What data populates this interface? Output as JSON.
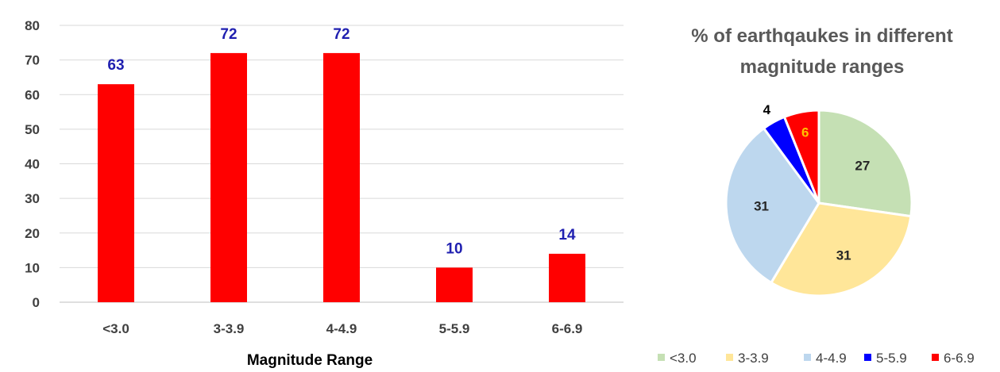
{
  "chart_data": [
    {
      "type": "bar",
      "xlabel": "Magnitude Range",
      "ylabel": "",
      "ylim": [
        0,
        80
      ],
      "yticks": [
        0,
        10,
        20,
        30,
        40,
        50,
        60,
        70,
        80
      ],
      "categories": [
        "<3.0",
        "3-3.9",
        "4-4.9",
        "5-5.9",
        "6-6.9"
      ],
      "values": [
        63,
        72,
        72,
        10,
        14
      ],
      "data_labels": [
        "63",
        "72",
        "72",
        "10",
        "14"
      ],
      "bar_color": "#ff0000",
      "label_color": "#1f1fb0",
      "grid": true
    },
    {
      "type": "pie",
      "title": "% of earthqaukes in different magnitude ranges",
      "title_lines": [
        "% of earthqaukes in different",
        "magnitude ranges"
      ],
      "categories": [
        "<3.0",
        "3-3.9",
        "4-4.9",
        "5-5.9",
        "6-6.9"
      ],
      "values": [
        27,
        31,
        31,
        4,
        6
      ],
      "data_labels": [
        "27",
        "31",
        "31",
        "4",
        "6"
      ],
      "colors": [
        "#c5e0b4",
        "#ffe699",
        "#bdd7ee",
        "#0000ff",
        "#ff0000"
      ],
      "label_colors": [
        "#262626",
        "#262626",
        "#262626",
        "#000000",
        "#ffc000"
      ],
      "legend_position": "bottom"
    }
  ]
}
